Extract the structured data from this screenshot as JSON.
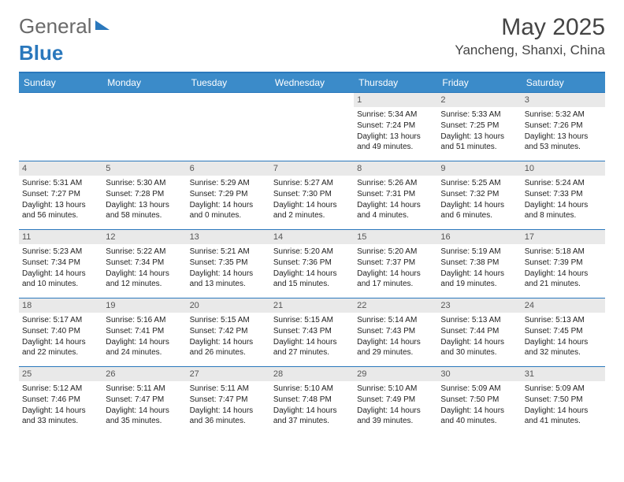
{
  "brand": {
    "part1": "General",
    "part2": "Blue"
  },
  "title": "May 2025",
  "location": "Yancheng, Shanxi, China",
  "colors": {
    "accent": "#2a78bc",
    "header_bg": "#3b8bc9",
    "daynum_bg": "#e9e9e9",
    "text": "#222222",
    "title_text": "#444444",
    "background": "#ffffff"
  },
  "days_of_week": [
    "Sunday",
    "Monday",
    "Tuesday",
    "Wednesday",
    "Thursday",
    "Friday",
    "Saturday"
  ],
  "weeks": [
    [
      null,
      null,
      null,
      null,
      {
        "n": "1",
        "sr": "5:34 AM",
        "ss": "7:24 PM",
        "dl": "13 hours and 49 minutes."
      },
      {
        "n": "2",
        "sr": "5:33 AM",
        "ss": "7:25 PM",
        "dl": "13 hours and 51 minutes."
      },
      {
        "n": "3",
        "sr": "5:32 AM",
        "ss": "7:26 PM",
        "dl": "13 hours and 53 minutes."
      }
    ],
    [
      {
        "n": "4",
        "sr": "5:31 AM",
        "ss": "7:27 PM",
        "dl": "13 hours and 56 minutes."
      },
      {
        "n": "5",
        "sr": "5:30 AM",
        "ss": "7:28 PM",
        "dl": "13 hours and 58 minutes."
      },
      {
        "n": "6",
        "sr": "5:29 AM",
        "ss": "7:29 PM",
        "dl": "14 hours and 0 minutes."
      },
      {
        "n": "7",
        "sr": "5:27 AM",
        "ss": "7:30 PM",
        "dl": "14 hours and 2 minutes."
      },
      {
        "n": "8",
        "sr": "5:26 AM",
        "ss": "7:31 PM",
        "dl": "14 hours and 4 minutes."
      },
      {
        "n": "9",
        "sr": "5:25 AM",
        "ss": "7:32 PM",
        "dl": "14 hours and 6 minutes."
      },
      {
        "n": "10",
        "sr": "5:24 AM",
        "ss": "7:33 PM",
        "dl": "14 hours and 8 minutes."
      }
    ],
    [
      {
        "n": "11",
        "sr": "5:23 AM",
        "ss": "7:34 PM",
        "dl": "14 hours and 10 minutes."
      },
      {
        "n": "12",
        "sr": "5:22 AM",
        "ss": "7:34 PM",
        "dl": "14 hours and 12 minutes."
      },
      {
        "n": "13",
        "sr": "5:21 AM",
        "ss": "7:35 PM",
        "dl": "14 hours and 13 minutes."
      },
      {
        "n": "14",
        "sr": "5:20 AM",
        "ss": "7:36 PM",
        "dl": "14 hours and 15 minutes."
      },
      {
        "n": "15",
        "sr": "5:20 AM",
        "ss": "7:37 PM",
        "dl": "14 hours and 17 minutes."
      },
      {
        "n": "16",
        "sr": "5:19 AM",
        "ss": "7:38 PM",
        "dl": "14 hours and 19 minutes."
      },
      {
        "n": "17",
        "sr": "5:18 AM",
        "ss": "7:39 PM",
        "dl": "14 hours and 21 minutes."
      }
    ],
    [
      {
        "n": "18",
        "sr": "5:17 AM",
        "ss": "7:40 PM",
        "dl": "14 hours and 22 minutes."
      },
      {
        "n": "19",
        "sr": "5:16 AM",
        "ss": "7:41 PM",
        "dl": "14 hours and 24 minutes."
      },
      {
        "n": "20",
        "sr": "5:15 AM",
        "ss": "7:42 PM",
        "dl": "14 hours and 26 minutes."
      },
      {
        "n": "21",
        "sr": "5:15 AM",
        "ss": "7:43 PM",
        "dl": "14 hours and 27 minutes."
      },
      {
        "n": "22",
        "sr": "5:14 AM",
        "ss": "7:43 PM",
        "dl": "14 hours and 29 minutes."
      },
      {
        "n": "23",
        "sr": "5:13 AM",
        "ss": "7:44 PM",
        "dl": "14 hours and 30 minutes."
      },
      {
        "n": "24",
        "sr": "5:13 AM",
        "ss": "7:45 PM",
        "dl": "14 hours and 32 minutes."
      }
    ],
    [
      {
        "n": "25",
        "sr": "5:12 AM",
        "ss": "7:46 PM",
        "dl": "14 hours and 33 minutes."
      },
      {
        "n": "26",
        "sr": "5:11 AM",
        "ss": "7:47 PM",
        "dl": "14 hours and 35 minutes."
      },
      {
        "n": "27",
        "sr": "5:11 AM",
        "ss": "7:47 PM",
        "dl": "14 hours and 36 minutes."
      },
      {
        "n": "28",
        "sr": "5:10 AM",
        "ss": "7:48 PM",
        "dl": "14 hours and 37 minutes."
      },
      {
        "n": "29",
        "sr": "5:10 AM",
        "ss": "7:49 PM",
        "dl": "14 hours and 39 minutes."
      },
      {
        "n": "30",
        "sr": "5:09 AM",
        "ss": "7:50 PM",
        "dl": "14 hours and 40 minutes."
      },
      {
        "n": "31",
        "sr": "5:09 AM",
        "ss": "7:50 PM",
        "dl": "14 hours and 41 minutes."
      }
    ]
  ],
  "labels": {
    "sunrise": "Sunrise:",
    "sunset": "Sunset:",
    "daylight": "Daylight:"
  }
}
